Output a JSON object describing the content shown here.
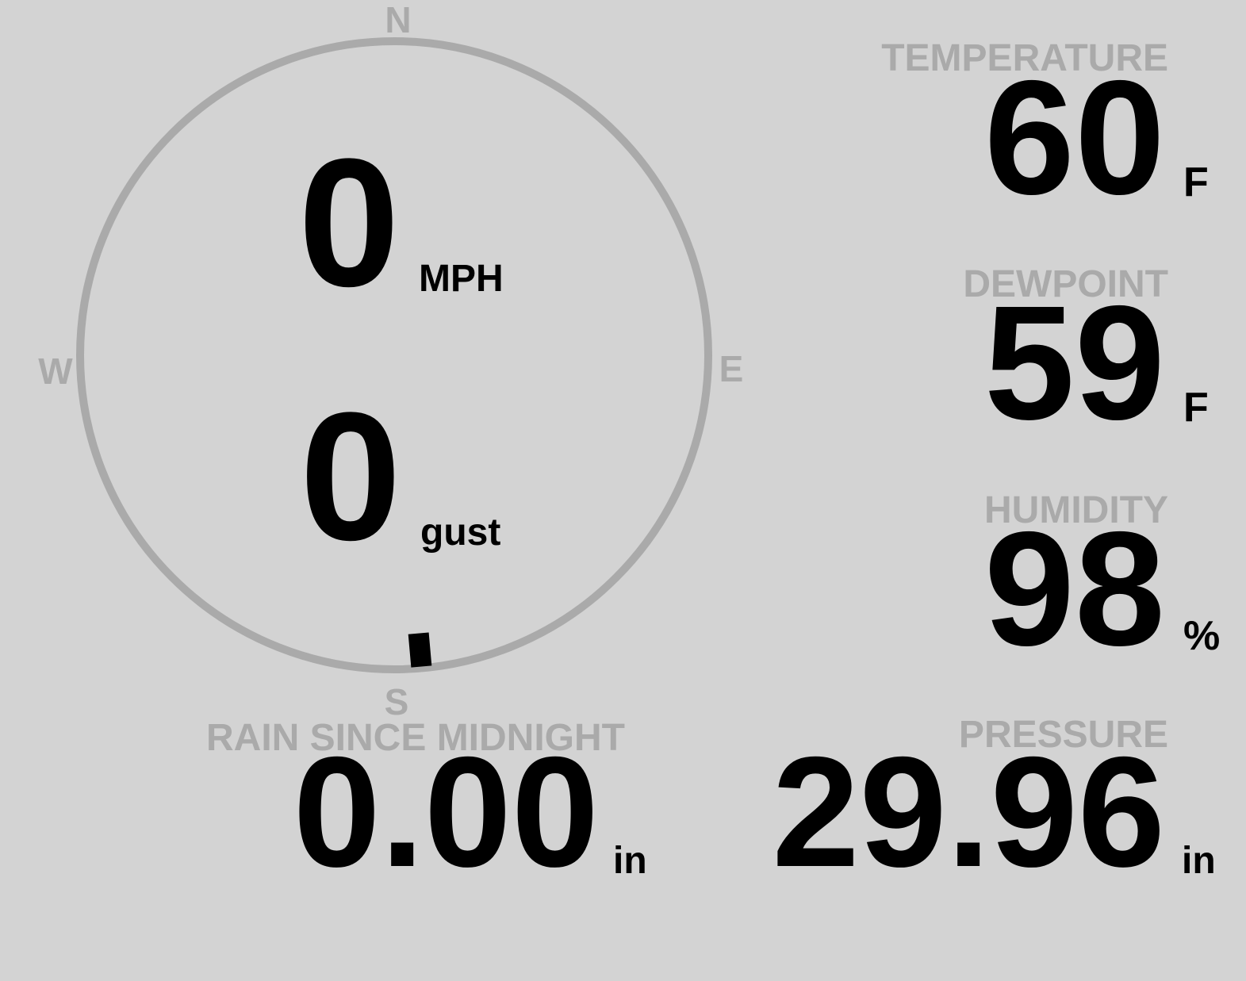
{
  "colors": {
    "background": "#d3d3d3",
    "label": "#aaaaaa",
    "value": "#000000",
    "dial": "#aaaaaa",
    "needle": "#000000"
  },
  "wind": {
    "compass": {
      "north": "N",
      "south": "S",
      "east": "E",
      "west": "W"
    },
    "direction_deg": 175,
    "speed": "0",
    "speed_unit": "MPH",
    "gust": "0",
    "gust_unit": "gust"
  },
  "rain": {
    "label": "RAIN SINCE MIDNIGHT",
    "value": "0.00",
    "unit": "in"
  },
  "temperature": {
    "label": "TEMPERATURE",
    "value": "60",
    "unit": "F"
  },
  "dewpoint": {
    "label": "DEWPOINT",
    "value": "59",
    "unit": "F"
  },
  "humidity": {
    "label": "HUMIDITY",
    "value": "98",
    "unit": "%"
  },
  "pressure": {
    "label": "PRESSURE",
    "value": "29.96",
    "unit": "in"
  }
}
